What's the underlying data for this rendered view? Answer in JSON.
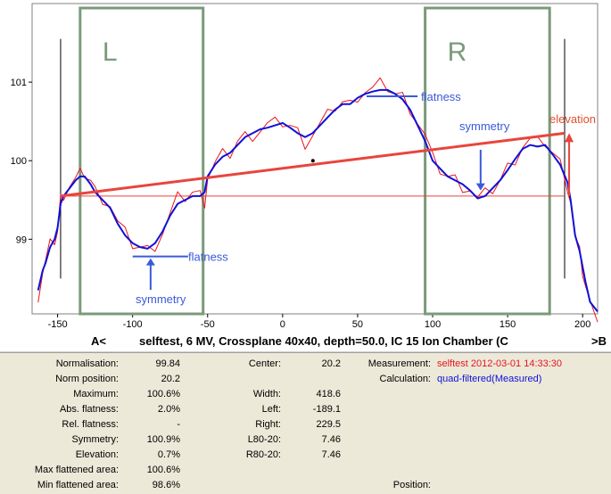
{
  "chart_data": {
    "type": "line",
    "title": "selftest, 6 MV, Crossplane 40x40, depth=50.0, IC 15 Ion Chamber (C",
    "nav_left": "A<",
    "nav_right": ">B",
    "xlim": [
      -167,
      210
    ],
    "ylim": [
      98.05,
      102.0
    ],
    "x_ticks": [
      -150,
      -100,
      -50,
      0,
      50,
      100,
      150,
      200
    ],
    "y_ticks": [
      99,
      100,
      101
    ],
    "colors": {
      "measured": "#e8141e",
      "filtered": "#1010d8",
      "red_line": "#e8453c",
      "box": "#7a9a7a",
      "annotation": "#3a5ad8"
    },
    "series": [
      {
        "name": "Measured",
        "x": [
          -163,
          -160,
          -158,
          -155,
          -152,
          -150,
          -148,
          -146,
          -142,
          -138,
          -135,
          -132,
          -128,
          -125,
          -120,
          -115,
          -110,
          -105,
          -100,
          -95,
          -90,
          -85,
          -80,
          -75,
          -70,
          -65,
          -60,
          -55,
          -52,
          -50,
          -45,
          -40,
          -35,
          -30,
          -25,
          -20,
          -15,
          -10,
          -5,
          0,
          5,
          10,
          15,
          20,
          25,
          30,
          35,
          40,
          45,
          50,
          55,
          60,
          65,
          70,
          75,
          80,
          85,
          90,
          95,
          100,
          105,
          110,
          115,
          120,
          125,
          130,
          135,
          140,
          145,
          150,
          155,
          160,
          165,
          170,
          175,
          180,
          185,
          190,
          192,
          195,
          198,
          200,
          202,
          205,
          210
        ],
        "y": [
          98.3,
          98.6,
          98.7,
          98.9,
          99.0,
          99.1,
          99.5,
          99.6,
          99.7,
          99.75,
          99.8,
          99.85,
          99.75,
          99.6,
          99.55,
          99.45,
          99.2,
          99.05,
          98.95,
          98.9,
          98.85,
          98.95,
          99.1,
          99.3,
          99.5,
          99.55,
          99.6,
          99.55,
          99.5,
          99.8,
          99.95,
          100.05,
          100.1,
          100.25,
          100.3,
          100.35,
          100.4,
          100.45,
          100.45,
          100.5,
          100.45,
          100.35,
          100.25,
          100.35,
          100.45,
          100.55,
          100.7,
          100.75,
          100.7,
          100.85,
          100.9,
          100.9,
          100.95,
          100.95,
          100.85,
          100.8,
          100.7,
          100.5,
          100.3,
          100.0,
          99.9,
          99.8,
          99.75,
          99.7,
          99.65,
          99.5,
          99.55,
          99.65,
          99.75,
          99.9,
          100.05,
          100.2,
          100.25,
          100.2,
          100.25,
          100.1,
          99.95,
          99.7,
          99.5,
          99.0,
          98.8,
          98.6,
          98.4,
          98.15,
          98.05
        ]
      },
      {
        "name": "quad-filtered",
        "x": [
          -163,
          -160,
          -158,
          -155,
          -152,
          -150,
          -148,
          -146,
          -142,
          -138,
          -135,
          -132,
          -128,
          -125,
          -120,
          -115,
          -110,
          -105,
          -100,
          -95,
          -90,
          -85,
          -80,
          -75,
          -70,
          -65,
          -60,
          -55,
          -52,
          -50,
          -45,
          -40,
          -35,
          -30,
          -25,
          -20,
          -15,
          -10,
          -5,
          0,
          5,
          10,
          15,
          20,
          25,
          30,
          35,
          40,
          45,
          50,
          55,
          60,
          65,
          70,
          75,
          80,
          85,
          90,
          95,
          100,
          105,
          110,
          115,
          120,
          125,
          130,
          135,
          140,
          145,
          150,
          155,
          160,
          165,
          170,
          175,
          180,
          185,
          190,
          192,
          195,
          198,
          200,
          202,
          205,
          210
        ],
        "y": [
          98.35,
          98.6,
          98.7,
          98.9,
          99.0,
          99.15,
          99.45,
          99.55,
          99.65,
          99.75,
          99.8,
          99.8,
          99.7,
          99.6,
          99.5,
          99.4,
          99.2,
          99.05,
          98.95,
          98.9,
          98.88,
          98.95,
          99.1,
          99.3,
          99.45,
          99.5,
          99.55,
          99.55,
          99.6,
          99.8,
          99.95,
          100.05,
          100.1,
          100.2,
          100.3,
          100.35,
          100.4,
          100.42,
          100.45,
          100.48,
          100.42,
          100.35,
          100.3,
          100.35,
          100.45,
          100.55,
          100.65,
          100.72,
          100.72,
          100.8,
          100.85,
          100.88,
          100.9,
          100.9,
          100.85,
          100.78,
          100.65,
          100.45,
          100.25,
          100.0,
          99.9,
          99.8,
          99.75,
          99.7,
          99.62,
          99.52,
          99.55,
          99.65,
          99.75,
          99.88,
          100.02,
          100.15,
          100.2,
          100.18,
          100.2,
          100.08,
          99.95,
          99.72,
          99.5,
          99.05,
          98.85,
          98.65,
          98.45,
          98.2,
          98.08
        ]
      }
    ],
    "reference_lines": {
      "vertical_limits_x": [
        -148,
        188
      ],
      "elevation_line": {
        "from": [
          -148,
          99.55
        ],
        "to": [
          188,
          100.35
        ]
      },
      "baseline_y": 99.55
    },
    "regions": [
      {
        "label": "L",
        "x_from": -135,
        "x_to": -53
      },
      {
        "label": "R",
        "x_from": 95,
        "x_to": 178
      }
    ],
    "annotations": {
      "flatness_top": "flatness",
      "symmetry_right": "symmetry",
      "elevation": "elevation",
      "flatness_left": "flatness",
      "symmetry_left": "symmetry"
    }
  },
  "stats": {
    "left": [
      {
        "label": "Normalisation:",
        "value": "99.84"
      },
      {
        "label": "Norm position:",
        "value": "20.2"
      },
      {
        "label": "Maximum:",
        "value": "100.6%"
      },
      {
        "label": "Abs. flatness:",
        "value": "2.0%"
      },
      {
        "label": "Rel. flatness:",
        "value": "-"
      },
      {
        "label": "Symmetry:",
        "value": "100.9%"
      },
      {
        "label": "Elevation:",
        "value": "0.7%"
      },
      {
        "label": "Max flattened area:",
        "value": "100.6%"
      },
      {
        "label": "Min flattened area:",
        "value": "98.6%"
      }
    ],
    "middle": [
      {
        "label": "Center:",
        "value": "20.2"
      },
      {
        "label": "",
        "value": ""
      },
      {
        "label": "Width:",
        "value": "418.6"
      },
      {
        "label": "Left:",
        "value": "-189.1"
      },
      {
        "label": "Right:",
        "value": "229.5"
      },
      {
        "label": "L80-20:",
        "value": "7.46"
      },
      {
        "label": "R80-20:",
        "value": "7.46"
      }
    ],
    "measurement_label": "Measurement:",
    "measurement_value": "selftest 2012-03-01 14:33:30",
    "calculation_label": "Calculation:",
    "calculation_value": "quad-filtered(Measured)",
    "position_label": "Position:",
    "measurement_color": "#e8141e",
    "calculation_color": "#1010d8"
  }
}
